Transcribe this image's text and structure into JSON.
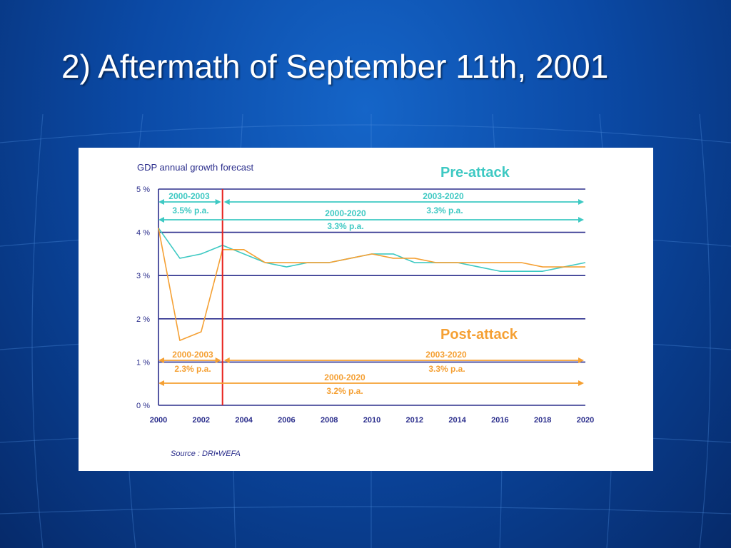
{
  "slide": {
    "title": "2) Aftermath of September 11th, 2001"
  },
  "colors": {
    "pre_attack": "#3ec9c3",
    "post_attack": "#f5a033",
    "grid": "#2b2e8c",
    "event_line": "#e8231e",
    "axis_text": "#2b2e8c"
  },
  "chart_data": {
    "type": "line",
    "title": "GDP annual growth forecast",
    "source": "Source : DRI•WEFA",
    "x_ticks": [
      "2000",
      "2002",
      "2004",
      "2006",
      "2008",
      "2010",
      "2012",
      "2014",
      "2016",
      "2018",
      "2020"
    ],
    "y_ticks": [
      "0 %",
      "1 %",
      "2 %",
      "3 %",
      "4 %",
      "5 %"
    ],
    "xlim": [
      2000,
      2020
    ],
    "ylim": [
      0,
      5
    ],
    "grid": true,
    "event_marker_year": 2003,
    "x": [
      2000,
      2001,
      2002,
      2003,
      2004,
      2005,
      2006,
      2007,
      2008,
      2009,
      2010,
      2011,
      2012,
      2013,
      2014,
      2015,
      2016,
      2017,
      2018,
      2019,
      2020
    ],
    "series": [
      {
        "name": "Pre-attack",
        "values": [
          4.1,
          3.4,
          3.5,
          3.7,
          3.5,
          3.3,
          3.2,
          3.3,
          3.3,
          3.4,
          3.5,
          3.5,
          3.3,
          3.3,
          3.3,
          3.2,
          3.1,
          3.1,
          3.1,
          3.2,
          3.3
        ]
      },
      {
        "name": "Post-attack",
        "values": [
          4.1,
          1.5,
          1.7,
          3.6,
          3.6,
          3.3,
          3.3,
          3.3,
          3.3,
          3.4,
          3.5,
          3.4,
          3.4,
          3.3,
          3.3,
          3.3,
          3.3,
          3.3,
          3.2,
          3.2,
          3.2
        ]
      }
    ],
    "annotations": {
      "pre_2000_2003": {
        "period": "2000-2003",
        "rate": "3.5% p.a."
      },
      "pre_2003_2020": {
        "period": "2003-2020",
        "rate": "3.3% p.a."
      },
      "pre_2000_2020": {
        "period": "2000-2020",
        "rate": "3.3% p.a."
      },
      "post_2000_2003": {
        "period": "2000-2003",
        "rate": "2.3% p.a."
      },
      "post_2003_2020": {
        "period": "2003-2020",
        "rate": "3.3% p.a."
      },
      "post_2000_2020": {
        "period": "2000-2020",
        "rate": "3.2% p.a."
      }
    }
  }
}
